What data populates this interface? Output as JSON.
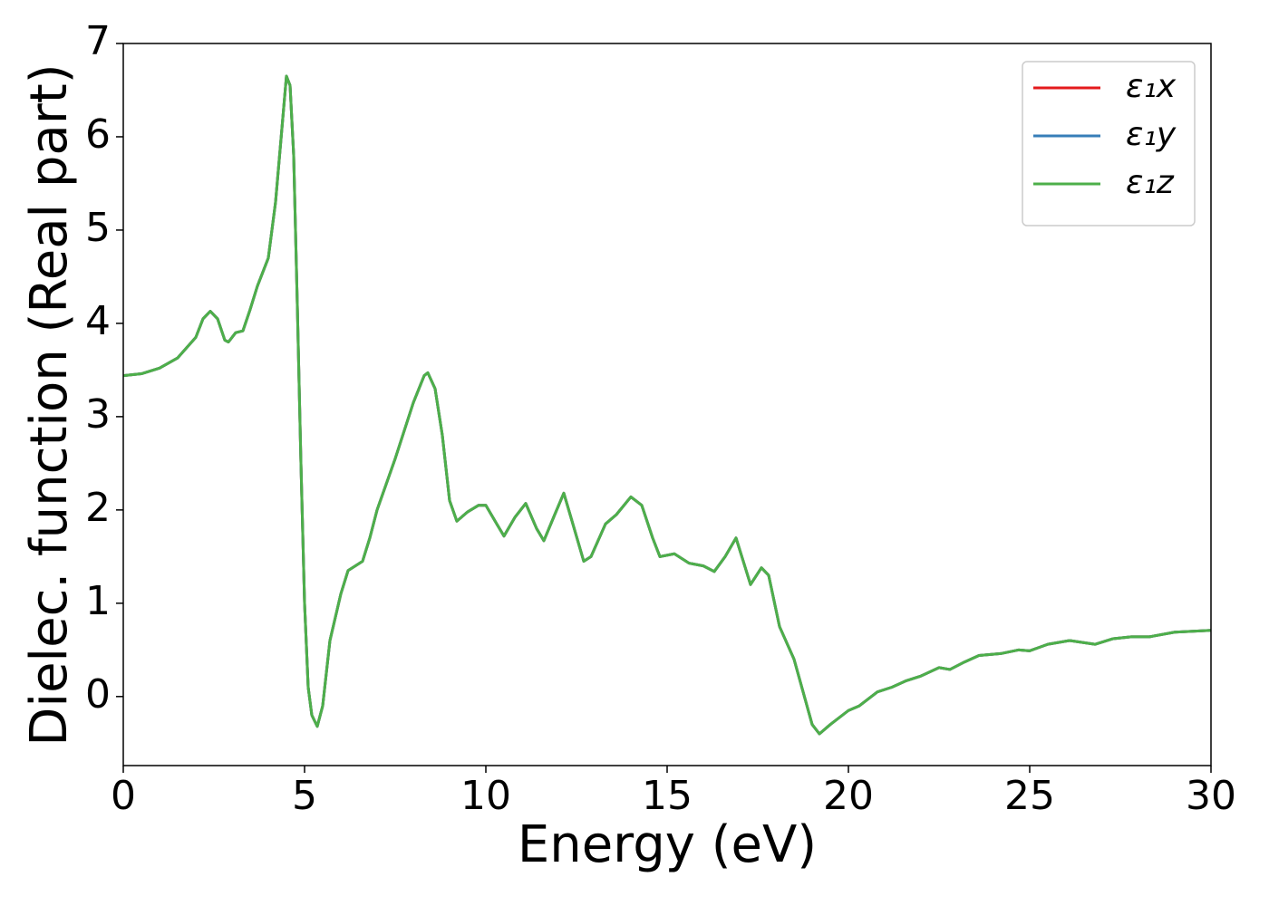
{
  "chart_data": {
    "type": "line",
    "x_label": "Energy (eV)",
    "y_label": "Dielec. function (Real part)",
    "x": [
      0,
      0.5,
      1.0,
      1.5,
      2.0,
      2.2,
      2.4,
      2.6,
      2.8,
      2.9,
      3.1,
      3.3,
      3.5,
      3.7,
      4.0,
      4.2,
      4.4,
      4.5,
      4.6,
      4.7,
      4.8,
      4.9,
      5.0,
      5.1,
      5.2,
      5.35,
      5.5,
      5.7,
      6.0,
      6.2,
      6.4,
      6.6,
      6.8,
      7.0,
      7.5,
      8.0,
      8.3,
      8.4,
      8.6,
      8.8,
      9.0,
      9.2,
      9.5,
      9.8,
      10.0,
      10.3,
      10.5,
      10.8,
      11.1,
      11.4,
      11.6,
      11.9,
      12.15,
      12.4,
      12.7,
      12.9,
      13.3,
      13.6,
      14.0,
      14.3,
      14.6,
      14.8,
      15.2,
      15.6,
      16.0,
      16.3,
      16.6,
      16.9,
      17.1,
      17.3,
      17.6,
      17.8,
      18.1,
      18.5,
      19.0,
      19.2,
      19.5,
      20.0,
      20.3,
      20.8,
      21.2,
      21.6,
      22.0,
      22.5,
      22.8,
      23.2,
      23.6,
      24.2,
      24.7,
      25.0,
      25.5,
      26.1,
      26.8,
      27.3,
      27.8,
      28.3,
      29.0,
      29.5,
      30.0
    ],
    "series": [
      {
        "name": "ε₁x",
        "color": "#e41a1c",
        "values": [
          3.44,
          3.46,
          3.52,
          3.63,
          3.85,
          4.05,
          4.13,
          4.05,
          3.82,
          3.8,
          3.9,
          3.92,
          4.15,
          4.4,
          4.7,
          5.3,
          6.2,
          6.65,
          6.55,
          5.8,
          4.2,
          2.5,
          1.0,
          0.1,
          -0.2,
          -0.32,
          -0.1,
          0.6,
          1.1,
          1.35,
          1.4,
          1.45,
          1.7,
          2.0,
          2.55,
          3.15,
          3.44,
          3.47,
          3.3,
          2.8,
          2.1,
          1.88,
          1.98,
          2.05,
          2.05,
          1.85,
          1.72,
          1.92,
          2.07,
          1.8,
          1.67,
          1.95,
          2.18,
          1.85,
          1.45,
          1.5,
          1.85,
          1.95,
          2.14,
          2.05,
          1.7,
          1.5,
          1.53,
          1.43,
          1.4,
          1.34,
          1.5,
          1.7,
          1.45,
          1.2,
          1.38,
          1.3,
          0.75,
          0.4,
          -0.3,
          -0.4,
          -0.3,
          -0.15,
          -0.1,
          0.05,
          0.1,
          0.17,
          0.22,
          0.31,
          0.29,
          0.37,
          0.44,
          0.46,
          0.5,
          0.49,
          0.56,
          0.6,
          0.56,
          0.62,
          0.64,
          0.64,
          0.69,
          0.7,
          0.71
        ]
      },
      {
        "name": "ε₁y",
        "color": "#377eb8",
        "values": [
          3.44,
          3.46,
          3.52,
          3.63,
          3.85,
          4.05,
          4.13,
          4.05,
          3.82,
          3.8,
          3.9,
          3.92,
          4.15,
          4.4,
          4.7,
          5.3,
          6.2,
          6.65,
          6.55,
          5.8,
          4.2,
          2.5,
          1.0,
          0.1,
          -0.2,
          -0.32,
          -0.1,
          0.6,
          1.1,
          1.35,
          1.4,
          1.45,
          1.7,
          2.0,
          2.55,
          3.15,
          3.44,
          3.47,
          3.3,
          2.8,
          2.1,
          1.88,
          1.98,
          2.05,
          2.05,
          1.85,
          1.72,
          1.92,
          2.07,
          1.8,
          1.67,
          1.95,
          2.18,
          1.85,
          1.45,
          1.5,
          1.85,
          1.95,
          2.14,
          2.05,
          1.7,
          1.5,
          1.53,
          1.43,
          1.4,
          1.34,
          1.5,
          1.7,
          1.45,
          1.2,
          1.38,
          1.3,
          0.75,
          0.4,
          -0.3,
          -0.4,
          -0.3,
          -0.15,
          -0.1,
          0.05,
          0.1,
          0.17,
          0.22,
          0.31,
          0.29,
          0.37,
          0.44,
          0.46,
          0.5,
          0.49,
          0.56,
          0.6,
          0.56,
          0.62,
          0.64,
          0.64,
          0.69,
          0.7,
          0.71
        ]
      },
      {
        "name": "ε₁z",
        "color": "#4daf4a",
        "values": [
          3.44,
          3.46,
          3.52,
          3.63,
          3.85,
          4.05,
          4.13,
          4.05,
          3.82,
          3.8,
          3.9,
          3.92,
          4.15,
          4.4,
          4.7,
          5.3,
          6.2,
          6.65,
          6.55,
          5.8,
          4.2,
          2.5,
          1.0,
          0.1,
          -0.2,
          -0.32,
          -0.1,
          0.6,
          1.1,
          1.35,
          1.4,
          1.45,
          1.7,
          2.0,
          2.55,
          3.15,
          3.44,
          3.47,
          3.3,
          2.8,
          2.1,
          1.88,
          1.98,
          2.05,
          2.05,
          1.85,
          1.72,
          1.92,
          2.07,
          1.8,
          1.67,
          1.95,
          2.18,
          1.85,
          1.45,
          1.5,
          1.85,
          1.95,
          2.14,
          2.05,
          1.7,
          1.5,
          1.53,
          1.43,
          1.4,
          1.34,
          1.5,
          1.7,
          1.45,
          1.2,
          1.38,
          1.3,
          0.75,
          0.4,
          -0.3,
          -0.4,
          -0.3,
          -0.15,
          -0.1,
          0.05,
          0.1,
          0.17,
          0.22,
          0.31,
          0.29,
          0.37,
          0.44,
          0.46,
          0.5,
          0.49,
          0.56,
          0.6,
          0.56,
          0.62,
          0.64,
          0.64,
          0.69,
          0.7,
          0.71
        ]
      }
    ],
    "xlim": [
      0,
      30
    ],
    "xticks": [
      0,
      5,
      10,
      15,
      20,
      25,
      30
    ],
    "ylim": [
      -0.74,
      7
    ],
    "yticks": [
      0,
      1,
      2,
      3,
      4,
      5,
      6,
      7
    ],
    "grid": false,
    "legend_loc": "upper right"
  }
}
